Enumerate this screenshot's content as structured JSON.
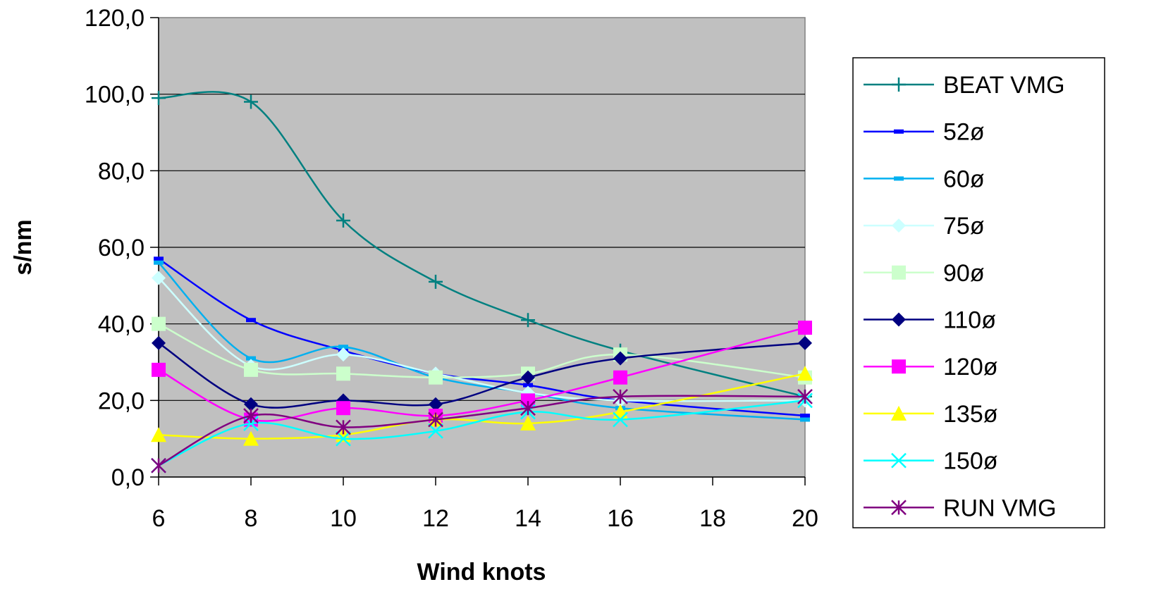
{
  "chart_data": {
    "type": "line",
    "xlabel": "Wind knots",
    "ylabel": "s/nm",
    "xlim": [
      6,
      20
    ],
    "ylim": [
      0,
      120
    ],
    "x_ticks": [
      "6",
      "8",
      "10",
      "12",
      "14",
      "16",
      "18",
      "20"
    ],
    "y_ticks": [
      "0,0",
      "20,0",
      "40,0",
      "60,0",
      "80,0",
      "100,0",
      "120,0"
    ],
    "plot_background": "#c0c0c0",
    "grid": "horizontal",
    "legend_position": "right",
    "x": [
      6,
      8,
      10,
      12,
      14,
      16,
      20
    ],
    "series": [
      {
        "name": "BEAT VMG",
        "values": [
          99,
          98,
          67,
          51,
          41,
          33,
          21
        ],
        "color": "#008080",
        "marker": "plus"
      },
      {
        "name": "52ø",
        "values": [
          57,
          41,
          33,
          27,
          24,
          20,
          16
        ],
        "color": "#0000ff",
        "marker": "dash"
      },
      {
        "name": "60ø",
        "values": [
          56,
          31,
          34,
          26,
          22,
          18,
          15
        ],
        "color": "#00b0f0",
        "marker": "dash"
      },
      {
        "name": "75ø",
        "values": [
          52,
          29,
          32,
          27,
          22,
          20,
          20
        ],
        "color": "#ccffff",
        "marker": "diamond"
      },
      {
        "name": "90ø",
        "values": [
          40,
          28,
          27,
          26,
          27,
          32,
          26
        ],
        "color": "#ccffcc",
        "marker": "square"
      },
      {
        "name": "110ø",
        "values": [
          35,
          19,
          20,
          19,
          26,
          31,
          35
        ],
        "color": "#000080",
        "marker": "diamond"
      },
      {
        "name": "120ø",
        "values": [
          28,
          15,
          18,
          16,
          20,
          26,
          39
        ],
        "color": "#ff00ff",
        "marker": "square"
      },
      {
        "name": "135ø",
        "values": [
          11,
          10,
          11,
          15,
          14,
          17,
          27
        ],
        "color": "#ffff00",
        "marker": "triangle"
      },
      {
        "name": "150ø",
        "values": [
          3,
          14,
          10,
          12,
          17,
          15,
          20
        ],
        "color": "#00ffff",
        "marker": "x"
      },
      {
        "name": "RUN VMG",
        "values": [
          3,
          16,
          13,
          15,
          18,
          21,
          21
        ],
        "color": "#800080",
        "marker": "star"
      }
    ]
  }
}
